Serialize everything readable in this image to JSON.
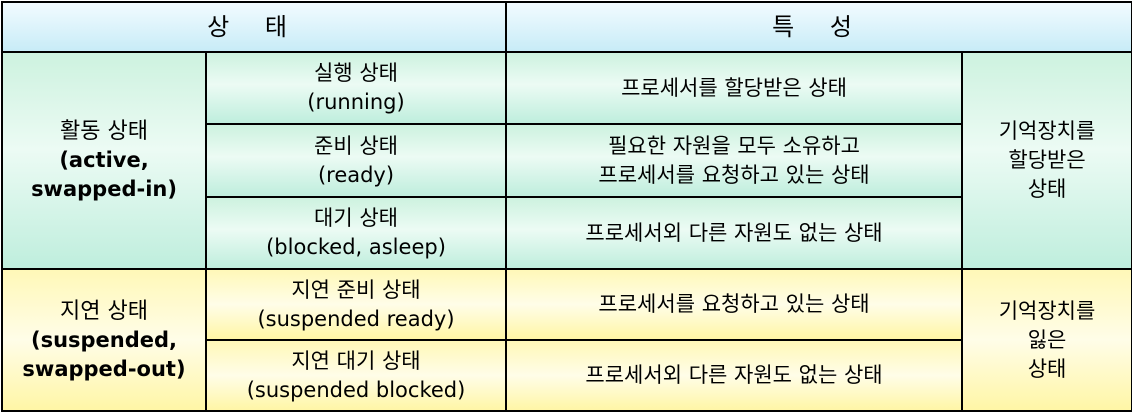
{
  "header": {
    "state": "상 태",
    "characteristic": "특 성"
  },
  "active": {
    "group_ko": "활동 상태",
    "group_en": "(active,",
    "group_en2": "swapped-in)",
    "memory_line1": "기억장치를",
    "memory_line2": "할당받은",
    "memory_line3": "상태",
    "rows": [
      {
        "state_ko": "실행 상태",
        "state_en": "(running)",
        "desc1": "프로세서를 할당받은 상태",
        "desc2": ""
      },
      {
        "state_ko": "준비 상태",
        "state_en": "(ready)",
        "desc1": "필요한 자원을 모두 소유하고",
        "desc2": "프로세서를 요청하고 있는 상태"
      },
      {
        "state_ko": "대기 상태",
        "state_en": "(blocked, asleep)",
        "desc1": "프로세서외 다른 자원도 없는 상태",
        "desc2": ""
      }
    ]
  },
  "suspended": {
    "group_ko": "지연 상태",
    "group_en": "(suspended,",
    "group_en2": "swapped-out)",
    "memory_line1": "기억장치를",
    "memory_line2": "잃은",
    "memory_line3": "상태",
    "rows": [
      {
        "state_ko": "지연 준비 상태",
        "state_en": "(suspended ready)",
        "desc1": "프로세서를 요청하고 있는 상태"
      },
      {
        "state_ko": "지연 대기 상태",
        "state_en": "(suspended blocked)",
        "desc1": "프로세서외 다른 자원도 없는 상태"
      }
    ]
  }
}
